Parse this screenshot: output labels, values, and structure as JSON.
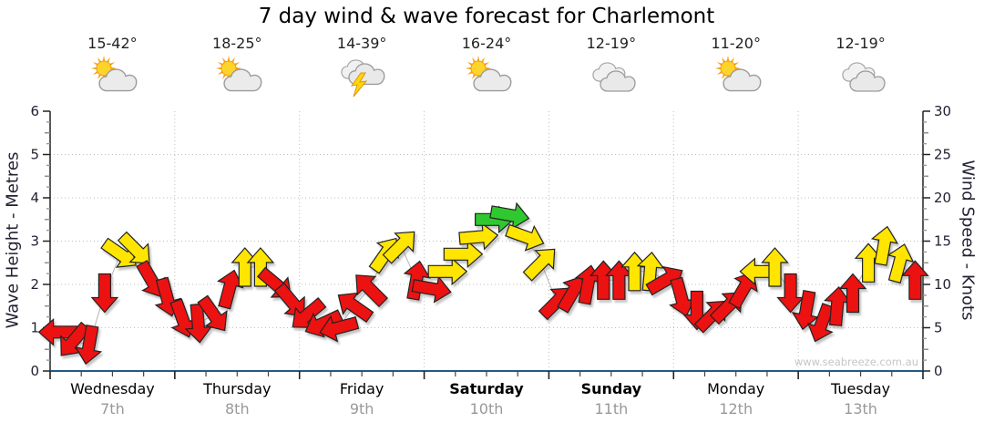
{
  "title": "7 day wind & wave forecast for Charlemont",
  "watermark": "www.seabreeze.com.au",
  "days": [
    {
      "name": "Wednesday",
      "date": "7th",
      "temp": "15-42°",
      "icon": "partly-cloudy",
      "bold": false
    },
    {
      "name": "Thursday",
      "date": "8th",
      "temp": "18-25°",
      "icon": "partly-cloudy",
      "bold": false
    },
    {
      "name": "Friday",
      "date": "9th",
      "temp": "14-39°",
      "icon": "thunderstorm",
      "bold": false
    },
    {
      "name": "Saturday",
      "date": "10th",
      "temp": "16-24°",
      "icon": "partly-cloudy",
      "bold": true
    },
    {
      "name": "Sunday",
      "date": "11th",
      "temp": "12-19°",
      "icon": "cloudy",
      "bold": true
    },
    {
      "name": "Monday",
      "date": "12th",
      "temp": "11-20°",
      "icon": "partly-cloudy",
      "bold": false
    },
    {
      "name": "Tuesday",
      "date": "13th",
      "temp": "12-19°",
      "icon": "cloudy",
      "bold": false
    }
  ],
  "axes": {
    "left_label": "Wave Height - Metres",
    "right_label": "Wind Speed - Knots",
    "left_ticks": [
      0,
      1,
      2,
      3,
      4,
      5,
      6
    ],
    "right_ticks": [
      0,
      5,
      10,
      15,
      20,
      25,
      30
    ],
    "left_range": [
      0,
      6
    ],
    "right_range": [
      0,
      30
    ]
  },
  "colors": {
    "red": "#ec1212",
    "yellow": "#ffe500",
    "green": "#2fc82f",
    "arrow_outline": "#222222",
    "grid": "#bdbdbd",
    "connector": "#b4b4b4",
    "axis_text": "#222233",
    "axis_bottom": "#235a85",
    "watermark_color": "#c6c6c6"
  },
  "chart_data": {
    "type": "wind-arrows",
    "title": "7 day wind & wave forecast for Charlemont",
    "x_axis_days": [
      "Wednesday 7th",
      "Thursday 8th",
      "Friday 9th",
      "Saturday 10th",
      "Sunday 11th",
      "Monday 12th",
      "Tuesday 13th"
    ],
    "hours_total": 168,
    "y_left": {
      "label": "Wave Height - Metres",
      "range": [
        0,
        6
      ]
    },
    "y_right": {
      "label": "Wind Speed - Knots",
      "range": [
        0,
        30
      ]
    },
    "grid": "dotted horizontal each metre, dotted vertical each day boundary",
    "point_format": [
      "hour_from_start",
      "wind_knots",
      "arrow_screen_direction_deg_0right_90down",
      "color"
    ],
    "points": [
      [
        1.5,
        4.5,
        180,
        "red"
      ],
      [
        4.5,
        3.5,
        130,
        "red"
      ],
      [
        7.5,
        3,
        100,
        "red"
      ],
      [
        10.5,
        9,
        90,
        "red"
      ],
      [
        13.5,
        13.5,
        35,
        "yellow"
      ],
      [
        16.5,
        14,
        45,
        "yellow"
      ],
      [
        19.5,
        10.5,
        60,
        "red"
      ],
      [
        22.5,
        8.5,
        75,
        "red"
      ],
      [
        25.5,
        6,
        70,
        "red"
      ],
      [
        28.5,
        5.5,
        85,
        "red"
      ],
      [
        31.5,
        6.5,
        55,
        "red"
      ],
      [
        34.5,
        9.5,
        285,
        "red"
      ],
      [
        37.5,
        12,
        270,
        "yellow"
      ],
      [
        40.5,
        12,
        270,
        "yellow"
      ],
      [
        43.5,
        10,
        40,
        "red"
      ],
      [
        46.5,
        8,
        50,
        "red"
      ],
      [
        49.5,
        6.5,
        140,
        "red"
      ],
      [
        52.5,
        5.5,
        155,
        "red"
      ],
      [
        55.5,
        5,
        165,
        "red"
      ],
      [
        58.5,
        7.5,
        215,
        "red"
      ],
      [
        61.5,
        9.5,
        225,
        "red"
      ],
      [
        64.5,
        13.5,
        305,
        "yellow"
      ],
      [
        67.5,
        14.5,
        315,
        "yellow"
      ],
      [
        70.5,
        10.5,
        280,
        "red"
      ],
      [
        73.5,
        9.5,
        10,
        "red"
      ],
      [
        76.5,
        11.5,
        0,
        "yellow"
      ],
      [
        79.5,
        13.5,
        0,
        "yellow"
      ],
      [
        82.5,
        15.5,
        355,
        "yellow"
      ],
      [
        85.5,
        17.5,
        0,
        "green"
      ],
      [
        88.5,
        18,
        10,
        "green"
      ],
      [
        91.5,
        15.5,
        20,
        "yellow"
      ],
      [
        94.5,
        12.5,
        315,
        "yellow"
      ],
      [
        97.5,
        8,
        315,
        "red"
      ],
      [
        100.5,
        9,
        300,
        "red"
      ],
      [
        103.5,
        10,
        280,
        "red"
      ],
      [
        106.5,
        10.5,
        270,
        "red"
      ],
      [
        109.5,
        10.5,
        270,
        "red"
      ],
      [
        112.5,
        11.5,
        270,
        "yellow"
      ],
      [
        115.5,
        11.5,
        275,
        "yellow"
      ],
      [
        118.5,
        10.5,
        330,
        "red"
      ],
      [
        121.5,
        8.5,
        75,
        "red"
      ],
      [
        124.5,
        7,
        90,
        "red"
      ],
      [
        127.5,
        6.5,
        315,
        "red"
      ],
      [
        130.5,
        7.5,
        315,
        "red"
      ],
      [
        133.5,
        9.5,
        300,
        "red"
      ],
      [
        136.5,
        11.5,
        180,
        "yellow"
      ],
      [
        139.5,
        12,
        270,
        "yellow"
      ],
      [
        142.5,
        9,
        90,
        "red"
      ],
      [
        145.5,
        7,
        100,
        "red"
      ],
      [
        148.5,
        5.5,
        110,
        "red"
      ],
      [
        151.5,
        7.5,
        275,
        "red"
      ],
      [
        154.5,
        9,
        270,
        "red"
      ],
      [
        157.5,
        12.5,
        270,
        "yellow"
      ],
      [
        160.5,
        14.5,
        280,
        "yellow"
      ],
      [
        163.5,
        12.5,
        285,
        "yellow"
      ],
      [
        166.5,
        10.5,
        270,
        "red"
      ]
    ]
  }
}
